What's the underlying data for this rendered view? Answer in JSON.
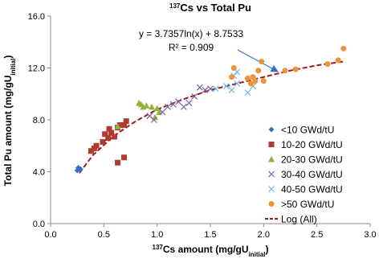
{
  "chart_data": {
    "type": "scatter",
    "title": [
      "137",
      "Cs vs Total Pu"
    ],
    "x_label": [
      "137",
      "Cs amount (mg/gU",
      "initial",
      ")"
    ],
    "y_label": [
      "Total Pu amount (mg/gU",
      "initial",
      ")"
    ],
    "annotations": [
      "y = 3.7357ln(x) + 8.7533",
      "R² = 0.909"
    ],
    "xlim": [
      0,
      3
    ],
    "ylim": [
      0,
      16
    ],
    "xticks": [
      {
        "value": 0,
        "label": "0.0"
      },
      {
        "value": 0.5,
        "label": "0.5"
      },
      {
        "value": 1,
        "label": "1.0"
      },
      {
        "value": 1.5,
        "label": "1.5"
      },
      {
        "value": 2,
        "label": "2.0"
      },
      {
        "value": 2.5,
        "label": "2.5"
      },
      {
        "value": 3,
        "label": "3.0"
      }
    ],
    "yticks": [
      {
        "value": 0,
        "label": "0.0"
      },
      {
        "value": 4,
        "label": "4.0"
      },
      {
        "value": 8,
        "label": "8.0"
      },
      {
        "value": 12,
        "label": "12.0"
      },
      {
        "value": 16,
        "label": "16.0"
      }
    ],
    "grid": false,
    "legend": "right",
    "series": [
      {
        "name": "<10 GWd/tU",
        "color": "#3a6fc4",
        "marker": "diamond",
        "x": [
          0.25,
          0.26,
          0.28
        ],
        "values": [
          4.1,
          4.3,
          4.2
        ]
      },
      {
        "name": "10-20 GWd/tU",
        "color": "#b03a2e",
        "marker": "square",
        "x": [
          0.38,
          0.41,
          0.43,
          0.49,
          0.51,
          0.54,
          0.55,
          0.57,
          0.6,
          0.63,
          0.65,
          0.69,
          0.71,
          0.63,
          0.69
        ],
        "values": [
          5.6,
          5.8,
          6.0,
          6.3,
          6.9,
          6.6,
          7.3,
          7.0,
          6.7,
          7.4,
          7.6,
          7.6,
          7.9,
          4.7,
          5.1
        ]
      },
      {
        "name": "20-30 GWd/tU",
        "color": "#8db33a",
        "marker": "triangle",
        "x": [
          0.63,
          0.83,
          0.85,
          0.87,
          0.9,
          0.95,
          1.0,
          1.02,
          0.98
        ],
        "values": [
          7.5,
          9.3,
          9.2,
          9.0,
          9.1,
          9.0,
          8.9,
          8.6,
          8.2
        ]
      },
      {
        "name": "30-40 GWd/tU",
        "color": "#7b5ea7",
        "marker": "x",
        "x": [
          0.93,
          0.97,
          1.05,
          1.1,
          1.15,
          1.2,
          1.25,
          1.3,
          1.35,
          1.4,
          1.45,
          1.5
        ],
        "values": [
          8.3,
          8.0,
          8.6,
          9.0,
          9.2,
          9.4,
          9.0,
          9.3,
          9.8,
          10.5,
          10.3,
          10.4
        ]
      },
      {
        "name": "40-50 GWd/tU",
        "color": "#6fb6e0",
        "marker": "x",
        "x": [
          1.55,
          1.65,
          1.72,
          1.75,
          1.7,
          1.85,
          1.9,
          1.75
        ],
        "values": [
          10.4,
          10.6,
          11.4,
          11.7,
          10.3,
          10.1,
          10.6,
          10.8
        ]
      },
      {
        "name": ">50 GWd/tU",
        "color": "#f0923a",
        "marker": "circle",
        "x": [
          1.7,
          1.72,
          1.85,
          1.88,
          1.9,
          1.92,
          1.95,
          1.98,
          2.0,
          2.2,
          2.3,
          2.6,
          2.7,
          2.75
        ],
        "values": [
          11.3,
          12.0,
          11.2,
          10.8,
          11.3,
          11.0,
          11.8,
          12.5,
          11.0,
          11.8,
          11.9,
          12.3,
          12.6,
          13.5
        ]
      }
    ],
    "trendline": {
      "name": "Log (All)",
      "color": "#9b1c1c",
      "x": [
        0.27,
        0.4,
        0.6,
        0.8,
        1.0,
        1.25,
        1.5,
        1.75,
        2.0,
        2.25,
        2.5,
        2.75
      ],
      "values": [
        3.9,
        5.3,
        6.8,
        7.9,
        8.8,
        9.6,
        10.3,
        10.8,
        11.3,
        11.8,
        12.2,
        12.5
      ]
    }
  }
}
